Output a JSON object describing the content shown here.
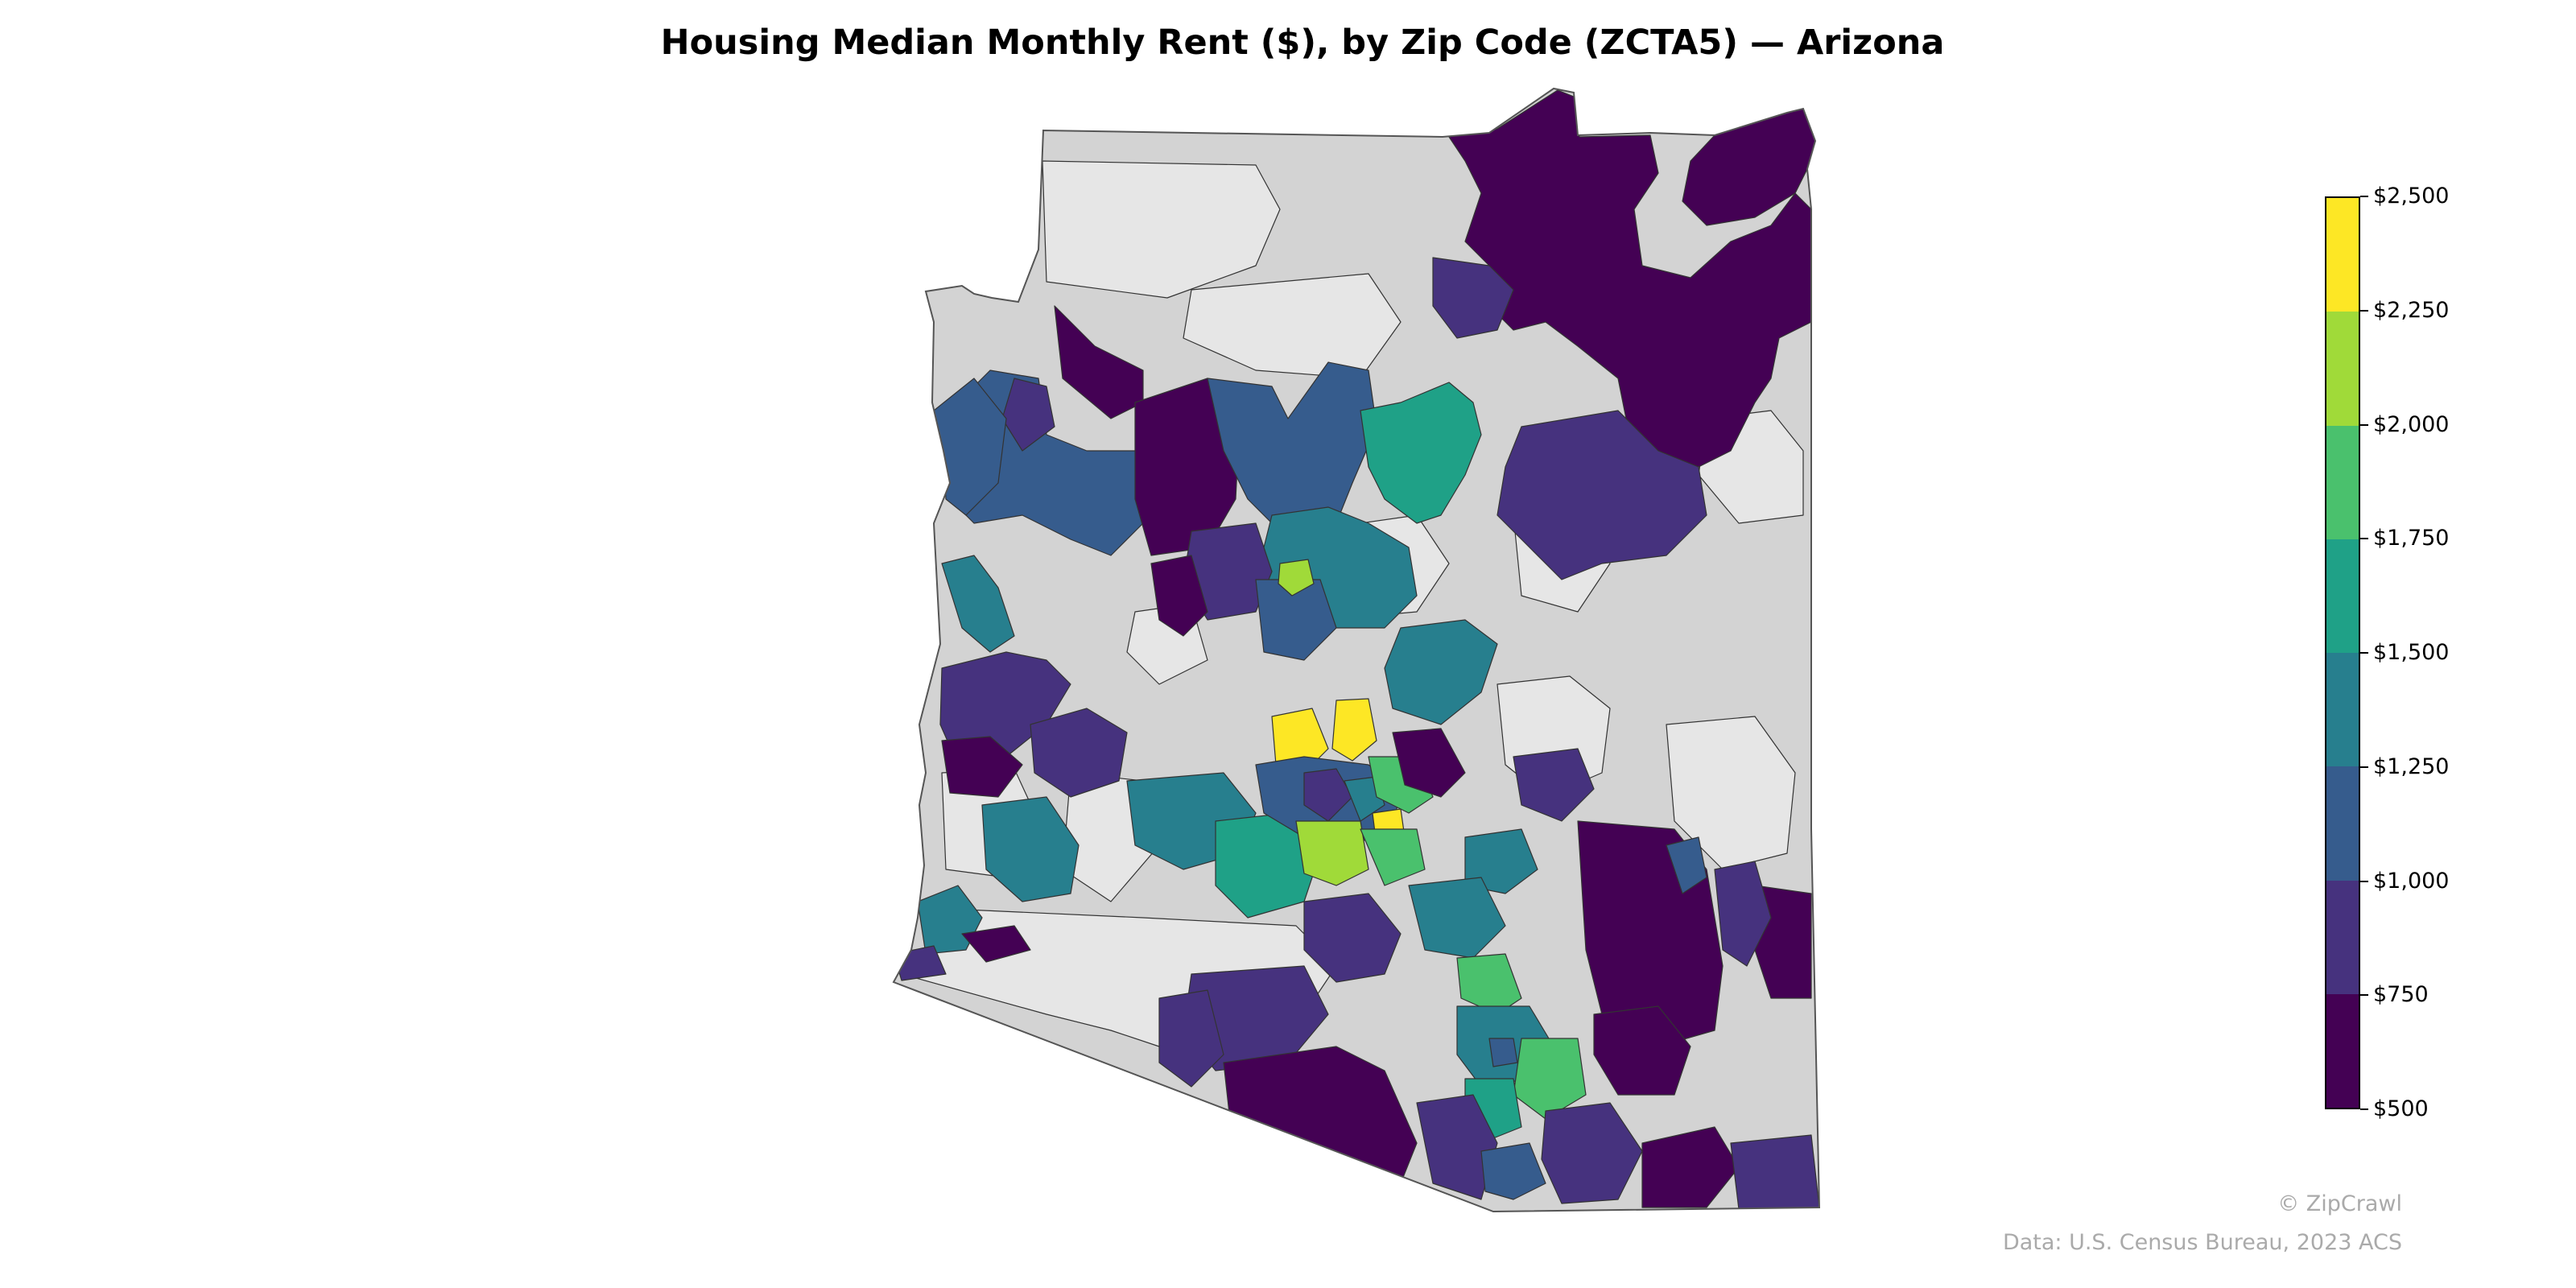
{
  "title": "Housing Median Monthly Rent ($), by Zip Code (ZCTA5) — Arizona",
  "legend": {
    "type": "stepped colorbar",
    "min": 500,
    "max": 2500,
    "step": 250,
    "tick_labels": [
      "$500",
      "$750",
      "$1,000",
      "$1,250",
      "$1,500",
      "$1,750",
      "$2,000",
      "$2,250",
      "$2,500"
    ],
    "band_colors": [
      "#440154",
      "#46327e",
      "#365c8d",
      "#277f8e",
      "#1fa187",
      "#4ac16d",
      "#a0da39",
      "#fde725"
    ],
    "no_data_colors": [
      "#d3d3d3",
      "#e6e6e6"
    ]
  },
  "colors": {
    "state_border": "#555555",
    "region_border": "#333333",
    "credit_text": "#aaaaaa"
  },
  "credits": {
    "brand": "© ZipCrawl",
    "source": "Data: U.S. Census Bureau, 2023 ACS"
  }
}
